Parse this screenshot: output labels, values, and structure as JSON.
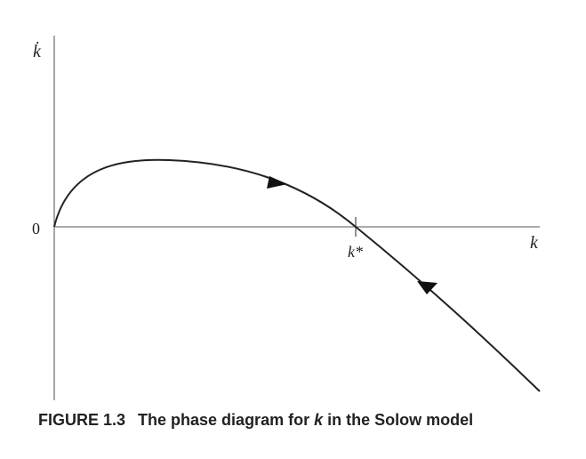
{
  "figure": {
    "y_axis_label": "k̇",
    "x_axis_label": "k",
    "origin_label": "0",
    "steady_state_label": "k*",
    "caption": {
      "number": "FIGURE 1.3",
      "text_before": "The phase diagram for ",
      "variable": "k",
      "text_after": " in the Solow model"
    }
  },
  "curve": {
    "description_type": "phase-curve",
    "crosses_zero_at": "k*",
    "arrows": [
      "right-above-axis",
      "left-below-axis"
    ]
  },
  "colors": {
    "line": "#222222",
    "axis": "#777777",
    "text": "#222222"
  }
}
